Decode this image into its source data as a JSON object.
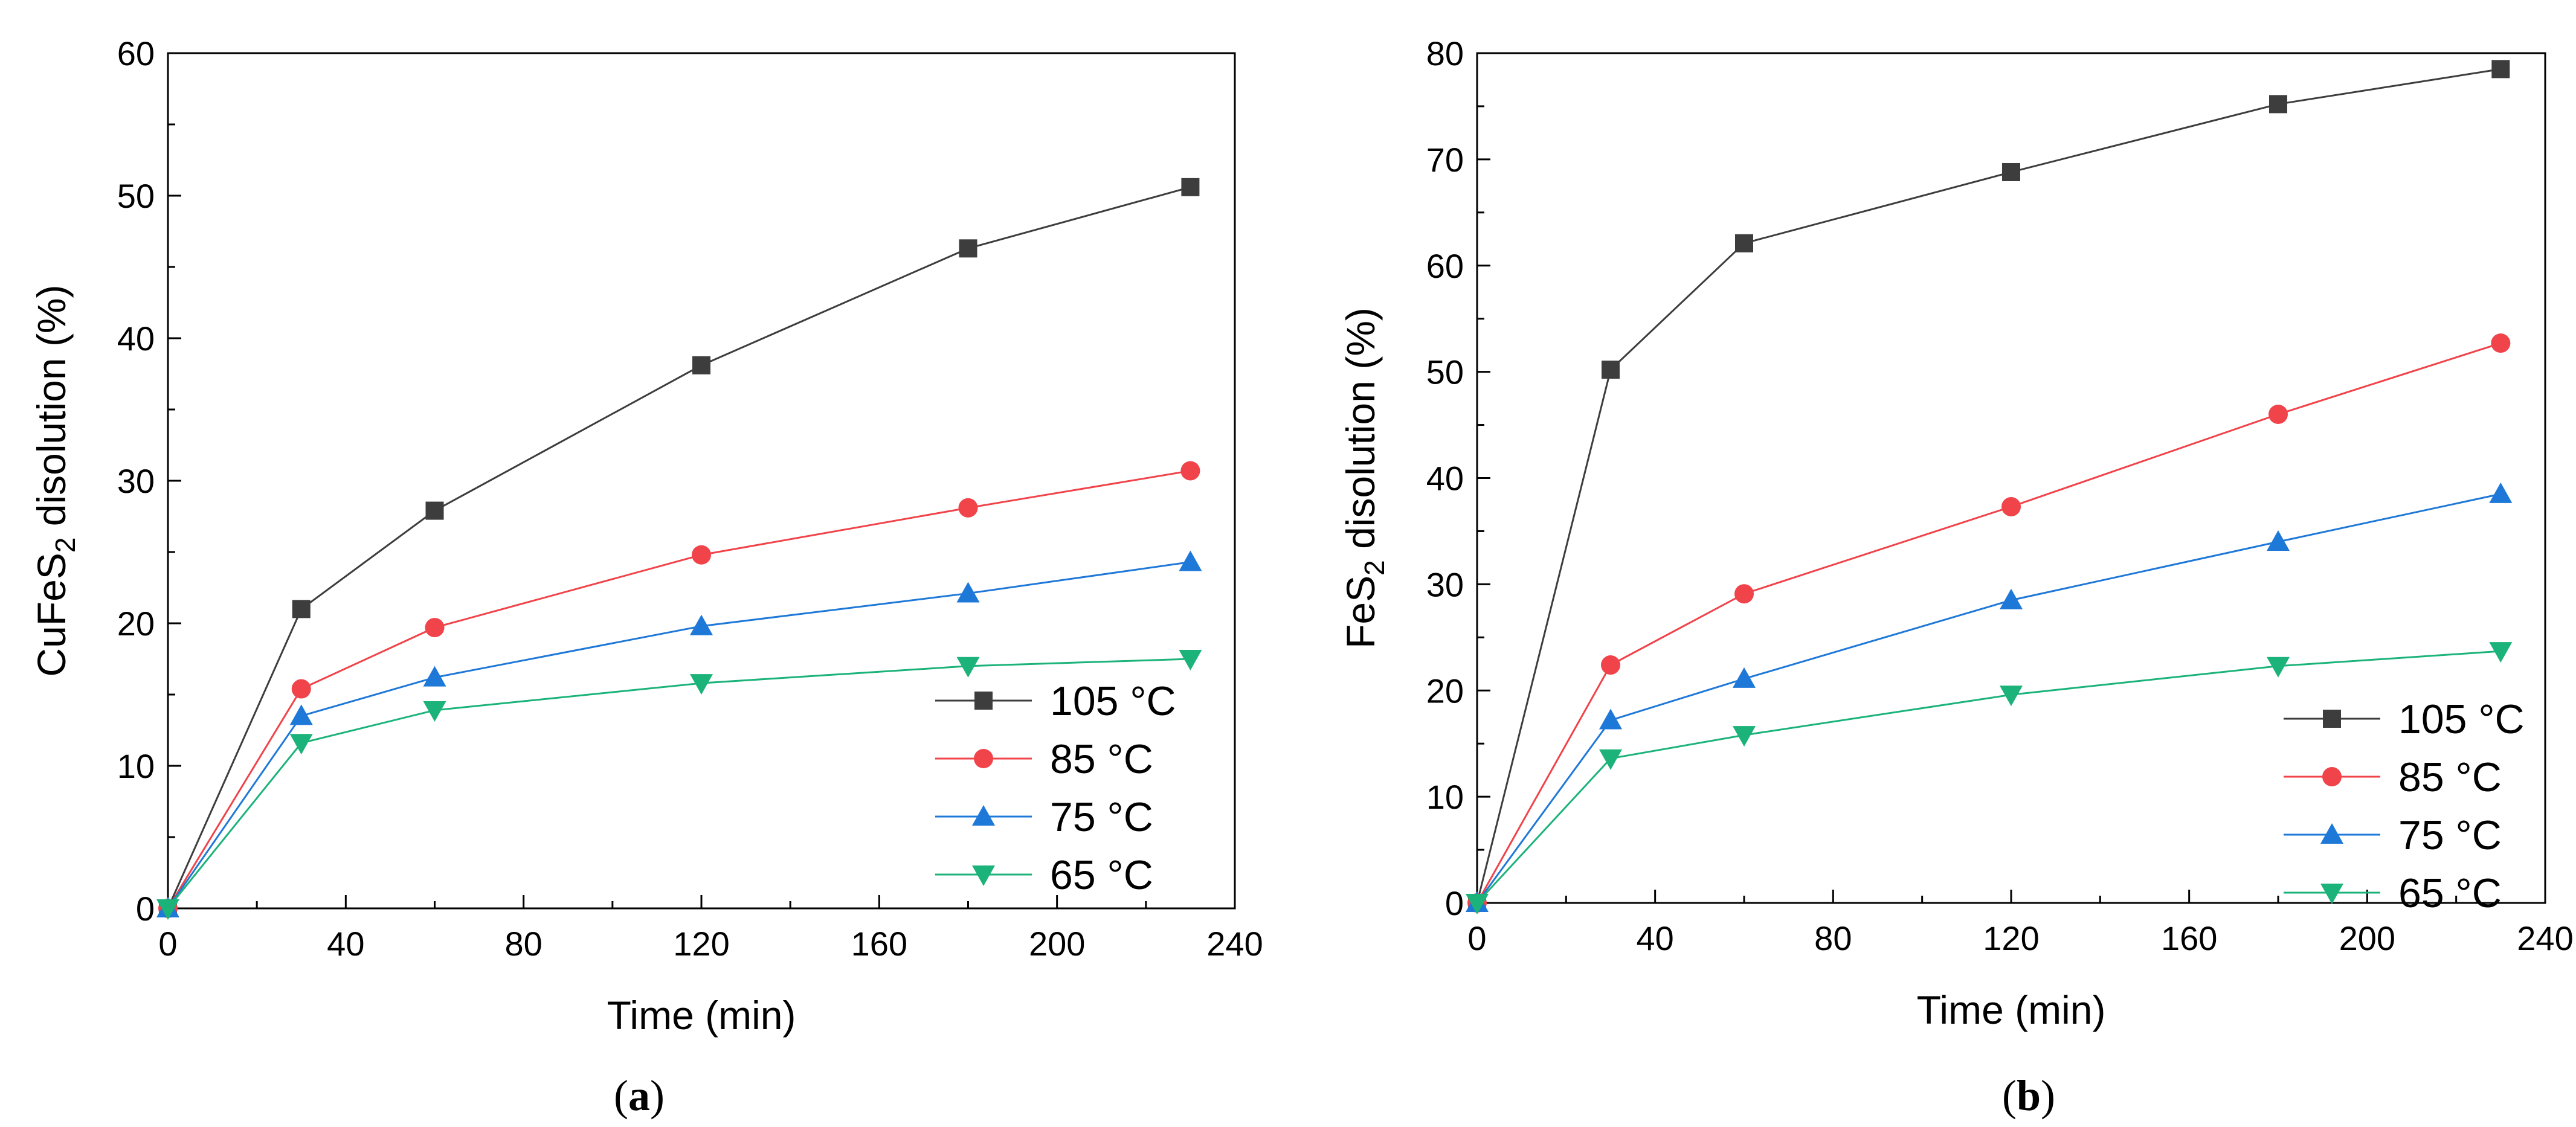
{
  "chart_data": [
    {
      "type": "line",
      "panel_label": "a",
      "xlabel": "Time (min)",
      "ylabel_parts": [
        "CuFeS",
        "2",
        " disolution (%)"
      ],
      "xlim": [
        0,
        240
      ],
      "ylim": [
        0,
        60
      ],
      "xticks": [
        0,
        40,
        80,
        120,
        160,
        200,
        240
      ],
      "yticks": [
        0,
        10,
        20,
        30,
        40,
        50,
        60
      ],
      "x": [
        0,
        30,
        60,
        120,
        180,
        230
      ],
      "grid": false,
      "legend_position": "bottom-right",
      "series": [
        {
          "name": "105 °C",
          "color": "#3d3d3d",
          "marker": "square",
          "values": [
            0,
            21.0,
            27.9,
            38.1,
            46.3,
            50.6
          ]
        },
        {
          "name": "85 °C",
          "color": "#f0434a",
          "marker": "circle",
          "values": [
            0,
            15.4,
            19.7,
            24.8,
            28.1,
            30.7
          ]
        },
        {
          "name": "75 °C",
          "color": "#1e78d8",
          "marker": "triangle-up",
          "values": [
            0,
            13.5,
            16.2,
            19.8,
            22.1,
            24.3
          ]
        },
        {
          "name": "65 °C",
          "color": "#1bb37a",
          "marker": "triangle-down",
          "values": [
            0,
            11.6,
            13.9,
            15.8,
            17.0,
            17.5
          ]
        }
      ]
    },
    {
      "type": "line",
      "panel_label": "b",
      "xlabel": "Time (min)",
      "ylabel_parts": [
        "FeS",
        "2",
        " disolution (%)"
      ],
      "xlim": [
        0,
        240
      ],
      "ylim": [
        0,
        80
      ],
      "xticks": [
        0,
        40,
        80,
        120,
        160,
        200,
        240
      ],
      "yticks": [
        0,
        10,
        20,
        30,
        40,
        50,
        60,
        70,
        80
      ],
      "x": [
        0,
        30,
        60,
        120,
        180,
        230
      ],
      "grid": false,
      "legend_position": "bottom-right",
      "series": [
        {
          "name": "105 °C",
          "color": "#3d3d3d",
          "marker": "square",
          "values": [
            0,
            50.2,
            62.1,
            68.8,
            75.2,
            78.5
          ]
        },
        {
          "name": "85 °C",
          "color": "#f0434a",
          "marker": "circle",
          "values": [
            0,
            22.4,
            29.1,
            37.3,
            46.0,
            52.7
          ]
        },
        {
          "name": "75 °C",
          "color": "#1e78d8",
          "marker": "triangle-up",
          "values": [
            0,
            17.2,
            21.1,
            28.5,
            34.0,
            38.5
          ]
        },
        {
          "name": "65 °C",
          "color": "#1bb37a",
          "marker": "triangle-down",
          "values": [
            0,
            13.6,
            15.8,
            19.6,
            22.3,
            23.7
          ]
        }
      ]
    }
  ]
}
